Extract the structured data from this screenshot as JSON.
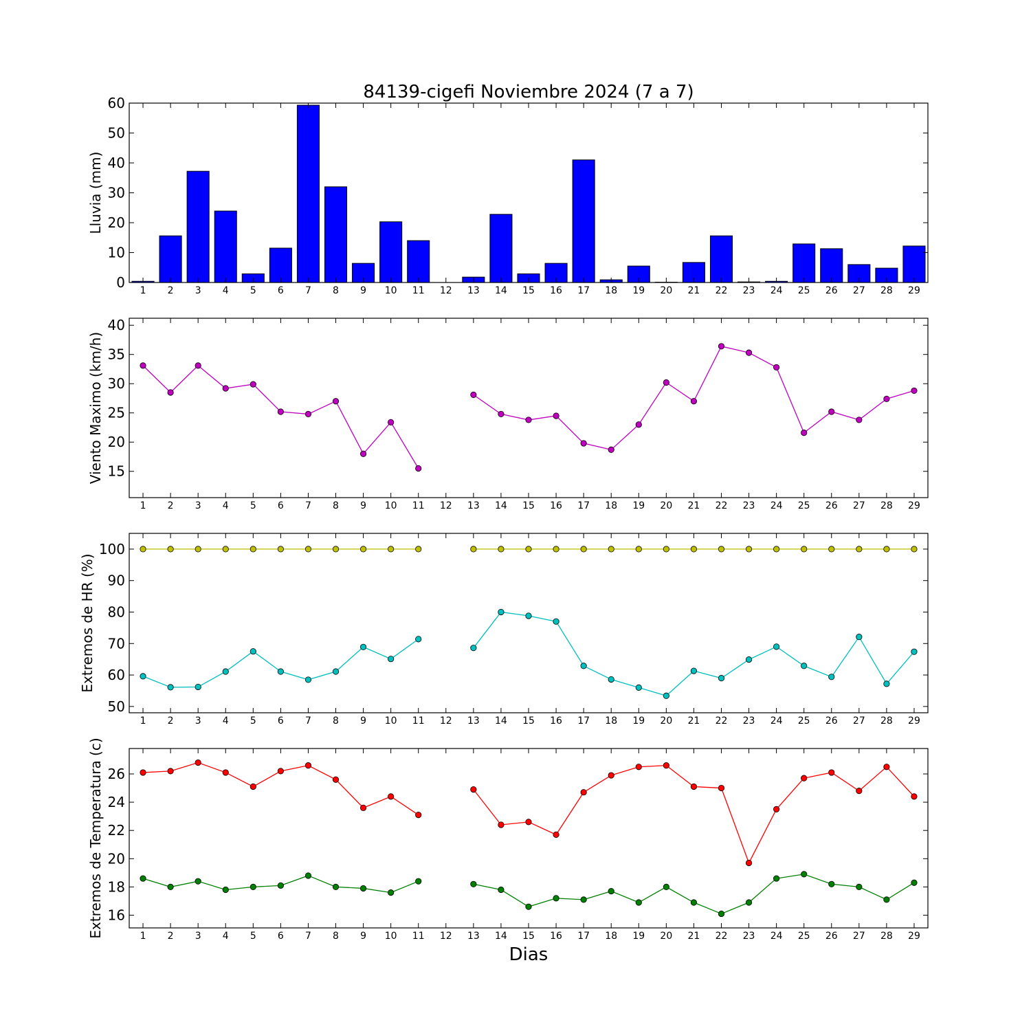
{
  "chart_data": [
    {
      "type": "bar",
      "title": "84139-cigefi Noviembre 2024  (7 a 7)",
      "ylabel": "Lluvia (mm)",
      "xlabel": "",
      "ylim": [
        0,
        60
      ],
      "yticks": [
        0,
        10,
        20,
        30,
        40,
        50,
        60
      ],
      "categories": [
        1,
        2,
        3,
        4,
        5,
        6,
        7,
        8,
        9,
        10,
        11,
        12,
        13,
        14,
        15,
        16,
        17,
        18,
        19,
        20,
        21,
        22,
        23,
        24,
        25,
        26,
        27,
        28,
        29
      ],
      "values": [
        0.4,
        15.6,
        37.2,
        23.9,
        2.9,
        11.5,
        59.3,
        32.0,
        6.4,
        20.3,
        14.0,
        null,
        1.8,
        22.8,
        2.9,
        6.4,
        41.0,
        0.9,
        5.5,
        0.1,
        6.7,
        15.6,
        0.2,
        0.4,
        12.9,
        11.3,
        6.0,
        4.8,
        12.2
      ],
      "colors": {
        "bar": "#0000ff",
        "edge": "#000000"
      },
      "grid": false
    },
    {
      "type": "line",
      "title": "",
      "ylabel": "Viento Maximo (km/h)",
      "xlabel": "",
      "ylim": [
        10.5,
        41.2
      ],
      "yticks": [
        15,
        20,
        25,
        30,
        35,
        40
      ],
      "x": [
        1,
        2,
        3,
        4,
        5,
        6,
        7,
        8,
        9,
        10,
        11,
        12,
        13,
        14,
        15,
        16,
        17,
        18,
        19,
        20,
        21,
        22,
        23,
        24,
        25,
        26,
        27,
        28,
        29
      ],
      "series": [
        {
          "color": "#bf00bf",
          "values": [
            33.1,
            28.5,
            33.1,
            29.2,
            29.9,
            25.2,
            24.8,
            27.0,
            18.0,
            23.4,
            15.5,
            null,
            28.1,
            24.8,
            23.8,
            24.5,
            19.8,
            18.7,
            23.0,
            30.2,
            27.0,
            36.4,
            35.3,
            32.8,
            21.6,
            25.2,
            23.8,
            27.4,
            28.8
          ]
        }
      ],
      "grid": false
    },
    {
      "type": "line",
      "title": "",
      "ylabel": "Extremos de HR (%)",
      "xlabel": "",
      "ylim": [
        48,
        105
      ],
      "yticks": [
        50,
        60,
        70,
        80,
        90,
        100
      ],
      "x": [
        1,
        2,
        3,
        4,
        5,
        6,
        7,
        8,
        9,
        10,
        11,
        12,
        13,
        14,
        15,
        16,
        17,
        18,
        19,
        20,
        21,
        22,
        23,
        24,
        25,
        26,
        27,
        28,
        29
      ],
      "series": [
        {
          "color": "#bfbf00",
          "values": [
            100,
            100,
            100,
            100,
            100,
            100,
            100,
            100,
            100,
            100,
            100,
            null,
            100,
            100,
            100,
            100,
            100,
            100,
            100,
            100,
            100,
            100,
            100,
            100,
            100,
            100,
            100,
            100,
            100
          ]
        },
        {
          "color": "#00bfbf",
          "values": [
            59.6,
            56.1,
            56.2,
            61.1,
            67.5,
            61.1,
            58.5,
            61.1,
            68.9,
            65.1,
            71.4,
            null,
            68.6,
            80.0,
            78.8,
            77.0,
            62.9,
            58.6,
            56.0,
            53.4,
            61.3,
            59.0,
            64.9,
            69.0,
            62.9,
            59.4,
            72.1,
            57.2,
            67.4
          ]
        }
      ],
      "grid": false
    },
    {
      "type": "line",
      "title": "",
      "ylabel": "Extremos de Temperatura (c)",
      "xlabel": "Dias",
      "ylim": [
        15.1,
        27.8
      ],
      "yticks": [
        16,
        18,
        20,
        22,
        24,
        26
      ],
      "x": [
        1,
        2,
        3,
        4,
        5,
        6,
        7,
        8,
        9,
        10,
        11,
        12,
        13,
        14,
        15,
        16,
        17,
        18,
        19,
        20,
        21,
        22,
        23,
        24,
        25,
        26,
        27,
        28,
        29
      ],
      "series": [
        {
          "color": "#ff0000",
          "values": [
            26.1,
            26.2,
            26.8,
            26.1,
            25.1,
            26.2,
            26.6,
            25.6,
            23.6,
            24.4,
            23.1,
            null,
            24.9,
            22.4,
            22.6,
            21.7,
            24.7,
            25.9,
            26.5,
            26.6,
            25.1,
            25.0,
            19.7,
            23.5,
            25.7,
            26.1,
            24.8,
            26.5,
            24.4
          ]
        },
        {
          "color": "#008000",
          "values": [
            18.6,
            18.0,
            18.4,
            17.8,
            18.0,
            18.1,
            18.8,
            18.0,
            17.9,
            17.6,
            18.4,
            null,
            18.2,
            17.8,
            16.6,
            17.2,
            17.1,
            17.7,
            16.9,
            18.0,
            16.9,
            16.1,
            16.9,
            18.6,
            18.9,
            18.2,
            18.0,
            17.1,
            18.3
          ]
        }
      ],
      "grid": false
    }
  ]
}
